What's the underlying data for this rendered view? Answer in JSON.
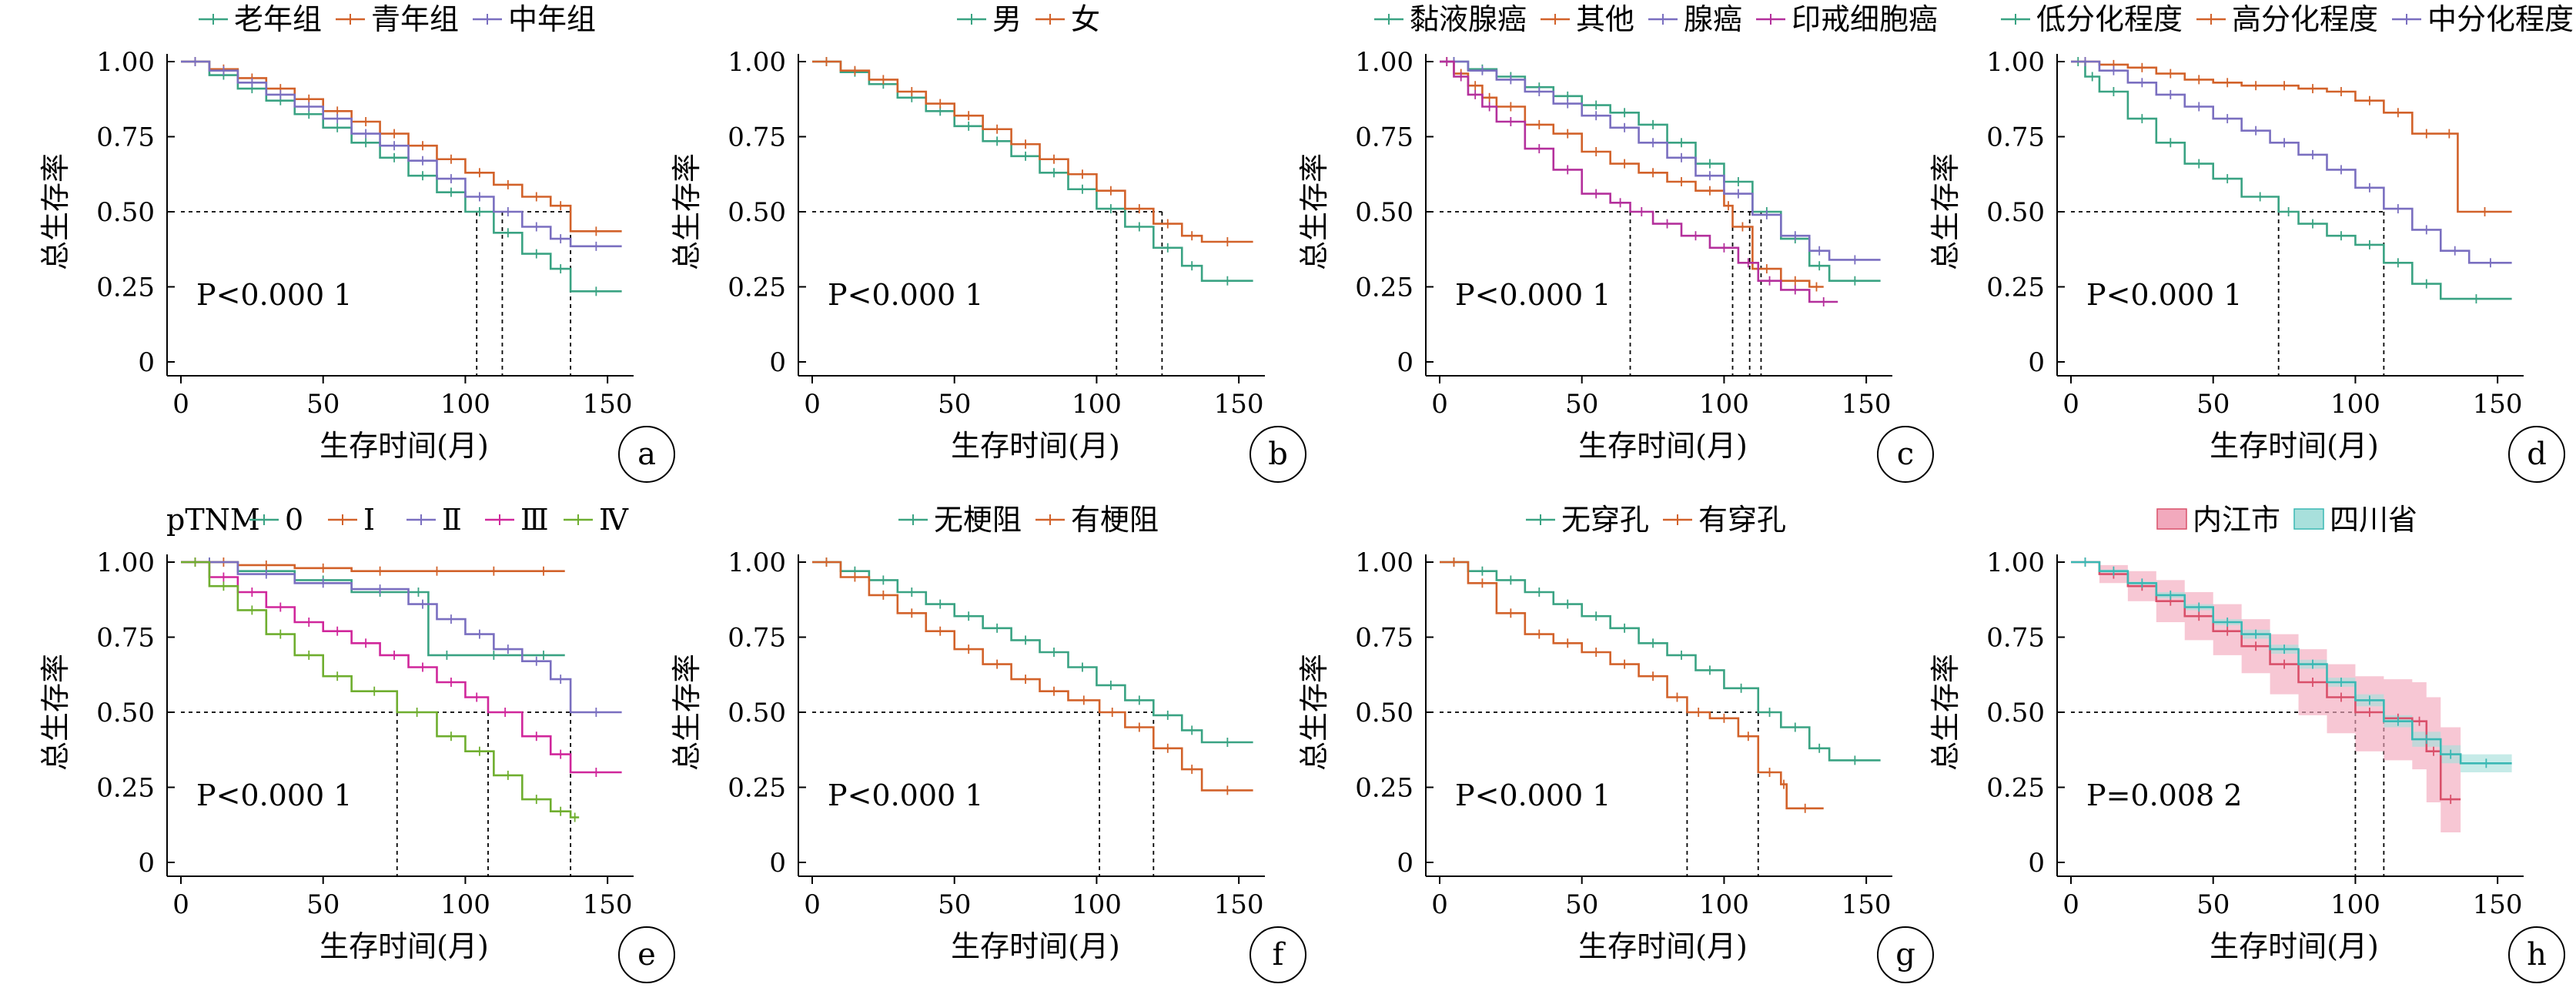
{
  "ylabel": "总生存率",
  "xlabel": "生存时间(月)",
  "x_ticks": [
    "0",
    "50",
    "100",
    "150"
  ],
  "y_ticks": [
    "0",
    "0.25",
    "0.50",
    "0.75",
    "1.00"
  ],
  "chart_data": [
    {
      "id": "a",
      "type": "line",
      "step": true,
      "xlim": [
        0,
        157
      ],
      "ylim": [
        0,
        1
      ],
      "legend_title": "",
      "p_value": "P<0.000 1",
      "series": [
        {
          "name": "老年组",
          "color": "#3aa383",
          "x": [
            0,
            10,
            20,
            30,
            40,
            50,
            60,
            70,
            80,
            90,
            100,
            110,
            120,
            130,
            137,
            155
          ],
          "y": [
            1.0,
            0.955,
            0.91,
            0.87,
            0.825,
            0.78,
            0.73,
            0.68,
            0.62,
            0.565,
            0.5,
            0.43,
            0.36,
            0.31,
            0.235,
            0.235
          ]
        },
        {
          "name": "青年组",
          "color": "#d2622a",
          "x": [
            0,
            10,
            20,
            30,
            40,
            50,
            60,
            70,
            80,
            90,
            100,
            110,
            120,
            130,
            137,
            155
          ],
          "y": [
            1.0,
            0.975,
            0.945,
            0.91,
            0.875,
            0.835,
            0.8,
            0.76,
            0.72,
            0.675,
            0.63,
            0.59,
            0.55,
            0.52,
            0.435,
            0.435
          ]
        },
        {
          "name": "中年组",
          "color": "#7a6fc0",
          "x": [
            0,
            10,
            20,
            30,
            40,
            50,
            60,
            70,
            80,
            90,
            100,
            110,
            120,
            130,
            137,
            155
          ],
          "y": [
            1.0,
            0.97,
            0.93,
            0.89,
            0.85,
            0.81,
            0.76,
            0.72,
            0.67,
            0.61,
            0.55,
            0.5,
            0.45,
            0.41,
            0.385,
            0.385
          ]
        }
      ],
      "median_lines": [
        104,
        113,
        137
      ]
    },
    {
      "id": "b",
      "type": "line",
      "step": true,
      "xlim": [
        0,
        157
      ],
      "ylim": [
        0,
        1
      ],
      "legend_title": "",
      "p_value": "P<0.000 1",
      "series": [
        {
          "name": "男",
          "color": "#3aa383",
          "x": [
            0,
            10,
            20,
            30,
            40,
            50,
            60,
            70,
            80,
            90,
            100,
            110,
            120,
            130,
            137,
            155
          ],
          "y": [
            1.0,
            0.965,
            0.925,
            0.88,
            0.835,
            0.785,
            0.735,
            0.685,
            0.63,
            0.575,
            0.51,
            0.45,
            0.38,
            0.32,
            0.27,
            0.27
          ]
        },
        {
          "name": "女",
          "color": "#d2622a",
          "x": [
            0,
            10,
            20,
            30,
            40,
            50,
            60,
            70,
            80,
            90,
            100,
            110,
            120,
            130,
            137,
            155
          ],
          "y": [
            1.0,
            0.97,
            0.94,
            0.9,
            0.86,
            0.82,
            0.775,
            0.725,
            0.675,
            0.625,
            0.57,
            0.51,
            0.46,
            0.42,
            0.4,
            0.4
          ]
        }
      ],
      "median_lines": [
        107,
        123
      ]
    },
    {
      "id": "c",
      "type": "line",
      "step": true,
      "xlim": [
        0,
        157
      ],
      "ylim": [
        0,
        1
      ],
      "legend_title": "",
      "p_value": "P<0.000 1",
      "series": [
        {
          "name": "黏液腺癌",
          "color": "#3aa383",
          "x": [
            0,
            10,
            20,
            30,
            40,
            50,
            60,
            70,
            80,
            90,
            100,
            110,
            120,
            130,
            137,
            155
          ],
          "y": [
            1.0,
            0.975,
            0.95,
            0.915,
            0.885,
            0.855,
            0.83,
            0.79,
            0.73,
            0.66,
            0.6,
            0.5,
            0.41,
            0.32,
            0.27,
            0.27
          ]
        },
        {
          "name": "其他",
          "color": "#d2622a",
          "x": [
            0,
            5,
            10,
            15,
            20,
            30,
            40,
            50,
            60,
            70,
            80,
            90,
            100,
            103,
            110,
            120,
            130,
            135
          ],
          "y": [
            1.0,
            0.96,
            0.92,
            0.88,
            0.85,
            0.79,
            0.76,
            0.7,
            0.66,
            0.63,
            0.6,
            0.57,
            0.52,
            0.45,
            0.31,
            0.27,
            0.25,
            0.25
          ]
        },
        {
          "name": "腺癌",
          "color": "#7a6fc0",
          "x": [
            0,
            10,
            20,
            30,
            40,
            50,
            60,
            70,
            80,
            90,
            100,
            110,
            120,
            130,
            137,
            155
          ],
          "y": [
            1.0,
            0.97,
            0.94,
            0.9,
            0.86,
            0.82,
            0.78,
            0.73,
            0.68,
            0.62,
            0.56,
            0.49,
            0.42,
            0.37,
            0.34,
            0.34
          ]
        },
        {
          "name": "印戒细胞癌",
          "color": "#b4309c",
          "x": [
            0,
            5,
            10,
            15,
            20,
            30,
            40,
            50,
            60,
            67,
            75,
            85,
            95,
            105,
            112,
            120,
            130,
            140
          ],
          "y": [
            1.0,
            0.95,
            0.89,
            0.85,
            0.8,
            0.71,
            0.64,
            0.56,
            0.53,
            0.5,
            0.46,
            0.42,
            0.38,
            0.33,
            0.27,
            0.24,
            0.2,
            0.2
          ]
        }
      ],
      "median_lines": [
        67,
        103,
        109,
        113
      ]
    },
    {
      "id": "d",
      "type": "line",
      "step": true,
      "xlim": [
        0,
        157
      ],
      "ylim": [
        0,
        1
      ],
      "legend_title": "",
      "p_value": "P<0.000 1",
      "series": [
        {
          "name": "低分化程度",
          "color": "#3aa383",
          "x": [
            0,
            5,
            10,
            20,
            30,
            40,
            50,
            60,
            73,
            80,
            90,
            100,
            110,
            120,
            130,
            155
          ],
          "y": [
            1.0,
            0.95,
            0.9,
            0.81,
            0.73,
            0.66,
            0.61,
            0.55,
            0.5,
            0.46,
            0.42,
            0.39,
            0.33,
            0.26,
            0.21,
            0.21
          ]
        },
        {
          "name": "高分化程度",
          "color": "#d2622a",
          "x": [
            0,
            10,
            20,
            30,
            40,
            50,
            60,
            70,
            80,
            90,
            100,
            110,
            120,
            130,
            136,
            155
          ],
          "y": [
            1.0,
            0.99,
            0.98,
            0.96,
            0.94,
            0.93,
            0.92,
            0.92,
            0.91,
            0.9,
            0.87,
            0.83,
            0.76,
            0.76,
            0.5,
            0.5
          ]
        },
        {
          "name": "中分化程度",
          "color": "#7a6fc0",
          "x": [
            0,
            10,
            20,
            30,
            40,
            50,
            60,
            70,
            80,
            90,
            100,
            110,
            120,
            130,
            140,
            155
          ],
          "y": [
            1.0,
            0.97,
            0.93,
            0.89,
            0.85,
            0.81,
            0.77,
            0.73,
            0.69,
            0.64,
            0.58,
            0.51,
            0.44,
            0.37,
            0.33,
            0.33
          ]
        }
      ],
      "median_lines": [
        73,
        110
      ]
    },
    {
      "id": "e",
      "type": "line",
      "step": true,
      "xlim": [
        0,
        157
      ],
      "ylim": [
        0,
        1
      ],
      "legend_title": "pTNM",
      "p_value": "P<0.000 1",
      "series": [
        {
          "name": "0",
          "color": "#3aa383",
          "x": [
            0,
            20,
            40,
            60,
            80,
            87,
            100,
            120,
            135
          ],
          "y": [
            1.0,
            0.97,
            0.94,
            0.9,
            0.9,
            0.69,
            0.69,
            0.69,
            0.69
          ]
        },
        {
          "name": "Ⅰ",
          "color": "#d2622a",
          "x": [
            0,
            10,
            20,
            40,
            60,
            80,
            100,
            120,
            135
          ],
          "y": [
            1.0,
            1.0,
            0.99,
            0.98,
            0.97,
            0.97,
            0.97,
            0.97,
            0.97
          ]
        },
        {
          "name": "Ⅱ",
          "color": "#7a6fc0",
          "x": [
            0,
            20,
            40,
            60,
            80,
            90,
            100,
            110,
            120,
            130,
            137,
            155
          ],
          "y": [
            1.0,
            0.96,
            0.93,
            0.91,
            0.86,
            0.81,
            0.76,
            0.71,
            0.67,
            0.61,
            0.5,
            0.5
          ]
        },
        {
          "name": "Ⅲ",
          "color": "#d0279b",
          "x": [
            0,
            10,
            20,
            30,
            40,
            50,
            60,
            70,
            80,
            90,
            100,
            108,
            120,
            130,
            137,
            155
          ],
          "y": [
            1.0,
            0.95,
            0.9,
            0.85,
            0.8,
            0.77,
            0.73,
            0.69,
            0.65,
            0.6,
            0.55,
            0.5,
            0.42,
            0.36,
            0.3,
            0.3
          ]
        },
        {
          "name": "Ⅳ",
          "color": "#6fae2f",
          "x": [
            0,
            10,
            20,
            30,
            40,
            50,
            60,
            76,
            90,
            100,
            110,
            120,
            130,
            137,
            140
          ],
          "y": [
            1.0,
            0.92,
            0.84,
            0.76,
            0.69,
            0.62,
            0.57,
            0.5,
            0.42,
            0.37,
            0.29,
            0.21,
            0.17,
            0.15,
            0.15
          ]
        }
      ],
      "median_lines": [
        76,
        108,
        137
      ]
    },
    {
      "id": "f",
      "type": "line",
      "step": true,
      "xlim": [
        0,
        157
      ],
      "ylim": [
        0,
        1
      ],
      "legend_title": "",
      "p_value": "P<0.000 1",
      "series": [
        {
          "name": "无梗阻",
          "color": "#3aa383",
          "x": [
            0,
            10,
            20,
            30,
            40,
            50,
            60,
            70,
            80,
            90,
            100,
            110,
            120,
            130,
            137,
            155
          ],
          "y": [
            1.0,
            0.97,
            0.94,
            0.9,
            0.86,
            0.82,
            0.78,
            0.74,
            0.7,
            0.65,
            0.59,
            0.54,
            0.49,
            0.44,
            0.4,
            0.4
          ]
        },
        {
          "name": "有梗阻",
          "color": "#d2622a",
          "x": [
            0,
            10,
            20,
            30,
            40,
            50,
            60,
            70,
            80,
            90,
            101,
            110,
            120,
            130,
            137,
            155
          ],
          "y": [
            1.0,
            0.95,
            0.89,
            0.83,
            0.77,
            0.71,
            0.66,
            0.61,
            0.57,
            0.54,
            0.5,
            0.45,
            0.38,
            0.31,
            0.24,
            0.24
          ]
        }
      ],
      "median_lines": [
        101,
        120
      ]
    },
    {
      "id": "g",
      "type": "line",
      "step": true,
      "xlim": [
        0,
        157
      ],
      "ylim": [
        0,
        1
      ],
      "legend_title": "",
      "p_value": "P<0.000 1",
      "series": [
        {
          "name": "无穿孔",
          "color": "#3aa383",
          "x": [
            0,
            10,
            20,
            30,
            40,
            50,
            60,
            70,
            80,
            90,
            100,
            112,
            120,
            130,
            137,
            155
          ],
          "y": [
            1.0,
            0.97,
            0.94,
            0.9,
            0.86,
            0.82,
            0.78,
            0.73,
            0.69,
            0.64,
            0.58,
            0.5,
            0.45,
            0.38,
            0.34,
            0.34
          ]
        },
        {
          "name": "有穿孔",
          "color": "#d2622a",
          "x": [
            0,
            10,
            20,
            30,
            40,
            50,
            60,
            70,
            80,
            87,
            95,
            105,
            112,
            120,
            122,
            135
          ],
          "y": [
            1.0,
            0.93,
            0.83,
            0.76,
            0.73,
            0.7,
            0.66,
            0.62,
            0.55,
            0.5,
            0.48,
            0.42,
            0.3,
            0.26,
            0.18,
            0.18
          ]
        }
      ],
      "median_lines": [
        87,
        112
      ]
    },
    {
      "id": "h",
      "type": "line",
      "step": true,
      "xlim": [
        0,
        157
      ],
      "ylim": [
        0,
        1
      ],
      "legend_title": "",
      "p_value": "P=0.008 2",
      "series": [
        {
          "name": "内江市",
          "color": "#d9506a",
          "band": "#f2a9bd",
          "x": [
            0,
            10,
            20,
            30,
            40,
            50,
            60,
            70,
            80,
            90,
            100,
            110,
            120,
            125,
            130,
            137
          ],
          "y": [
            1.0,
            0.96,
            0.92,
            0.87,
            0.82,
            0.77,
            0.72,
            0.66,
            0.6,
            0.55,
            0.5,
            0.48,
            0.47,
            0.37,
            0.21,
            0.21
          ],
          "lower": [
            1.0,
            0.93,
            0.87,
            0.8,
            0.74,
            0.69,
            0.63,
            0.56,
            0.49,
            0.43,
            0.37,
            0.34,
            0.31,
            0.2,
            0.1,
            0.1
          ],
          "upper": [
            1.0,
            0.99,
            0.97,
            0.94,
            0.9,
            0.86,
            0.81,
            0.76,
            0.71,
            0.66,
            0.62,
            0.61,
            0.6,
            0.55,
            0.45,
            0.45
          ]
        },
        {
          "name": "四川省",
          "color": "#3ab8b4",
          "band": "#a8e0dc",
          "x": [
            0,
            10,
            20,
            30,
            40,
            50,
            60,
            70,
            80,
            90,
            100,
            110,
            120,
            130,
            137,
            155
          ],
          "y": [
            1.0,
            0.97,
            0.93,
            0.89,
            0.85,
            0.8,
            0.76,
            0.71,
            0.66,
            0.6,
            0.54,
            0.47,
            0.41,
            0.36,
            0.33,
            0.33
          ],
          "lower": [
            1.0,
            0.965,
            0.925,
            0.88,
            0.84,
            0.79,
            0.745,
            0.695,
            0.645,
            0.585,
            0.52,
            0.45,
            0.385,
            0.33,
            0.3,
            0.3
          ],
          "upper": [
            1.0,
            0.975,
            0.935,
            0.9,
            0.86,
            0.81,
            0.775,
            0.725,
            0.675,
            0.615,
            0.56,
            0.49,
            0.435,
            0.39,
            0.36,
            0.36
          ]
        }
      ],
      "median_lines": [
        100,
        110
      ]
    }
  ]
}
